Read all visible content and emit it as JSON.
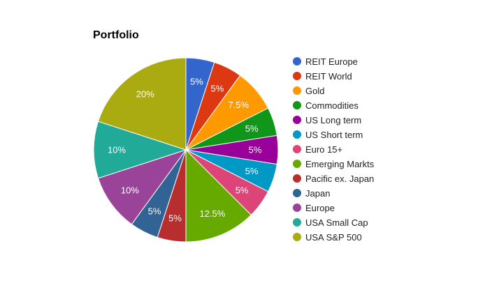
{
  "chart_data": {
    "type": "pie",
    "title": "Portfolio",
    "legend_position": "right",
    "slices": [
      {
        "label": "REIT Europe",
        "value": 5,
        "display": "5%",
        "color": "#3366cc"
      },
      {
        "label": "REIT World",
        "value": 5,
        "display": "5%",
        "color": "#dc3912"
      },
      {
        "label": "Gold",
        "value": 7.5,
        "display": "7.5%",
        "color": "#ff9900"
      },
      {
        "label": "Commodities",
        "value": 5,
        "display": "5%",
        "color": "#109618"
      },
      {
        "label": "US Long term",
        "value": 5,
        "display": "5%",
        "color": "#990099"
      },
      {
        "label": "US Short term",
        "value": 5,
        "display": "5%",
        "color": "#0099c6"
      },
      {
        "label": "Euro 15+",
        "value": 5,
        "display": "5%",
        "color": "#dd4477"
      },
      {
        "label": "Emerging Markts",
        "value": 12.5,
        "display": "12.5%",
        "color": "#66aa00"
      },
      {
        "label": "Pacific ex. Japan",
        "value": 5,
        "display": "5%",
        "color": "#b82e2e"
      },
      {
        "label": "Japan",
        "value": 5,
        "display": "5%",
        "color": "#316395"
      },
      {
        "label": "Europe",
        "value": 10,
        "display": "10%",
        "color": "#994499"
      },
      {
        "label": "USA Small Cap",
        "value": 10,
        "display": "10%",
        "color": "#22aa99"
      },
      {
        "label": "USA S&P 500",
        "value": 20,
        "display": "20%",
        "color": "#aaaa11"
      }
    ]
  }
}
